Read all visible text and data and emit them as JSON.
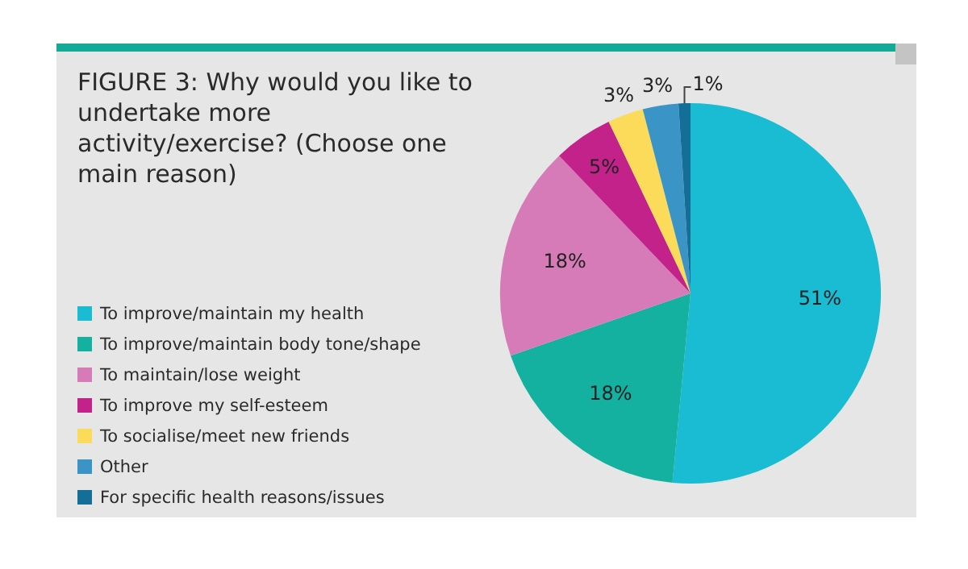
{
  "chart_data": {
    "type": "pie",
    "title": "FIGURE 3: Why would you like to undertake more activity/exercise? (Choose one main reason)",
    "categories": [
      "To improve/maintain my health",
      "To improve/maintain body tone/shape",
      "To maintain/lose weight",
      "To improve my self-esteem",
      "To socialise/meet new friends",
      "Other",
      "For specific health reasons/issues"
    ],
    "values": [
      51,
      18,
      18,
      5,
      3,
      3,
      1
    ],
    "colors": [
      "#19bcd2",
      "#14b0a0",
      "#d77bb8",
      "#c2228a",
      "#fcdb5a",
      "#3b94c6",
      "#136f97"
    ],
    "value_labels": [
      "51%",
      "18%",
      "18%",
      "5%",
      "3%",
      "3%",
      "1%"
    ],
    "legend": "left"
  }
}
